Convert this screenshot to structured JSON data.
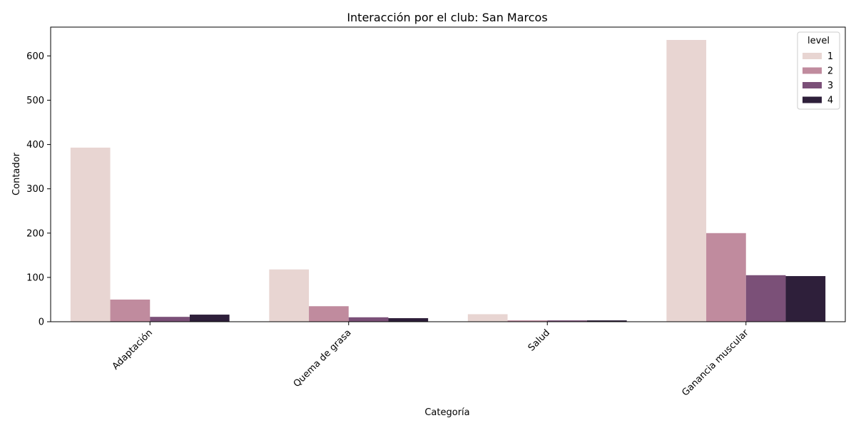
{
  "chart_data": {
    "type": "bar",
    "title": "Interacción por el club: San Marcos",
    "xlabel": "Categoría",
    "ylabel": "Contador",
    "categories": [
      "Adaptación",
      "Quema de grasa",
      "Salud",
      "Ganancia muscular"
    ],
    "legend": {
      "title": "level",
      "placement": "top-right"
    },
    "series": [
      {
        "name": "1",
        "color": "#e8d5d2",
        "values": [
          393,
          118,
          17,
          636
        ]
      },
      {
        "name": "2",
        "color": "#c08b9e",
        "values": [
          50,
          35,
          3,
          200
        ]
      },
      {
        "name": "3",
        "color": "#7b5078",
        "values": [
          11,
          10,
          3,
          105
        ]
      },
      {
        "name": "4",
        "color": "#2e1f3a",
        "values": [
          16,
          8,
          3,
          103
        ]
      }
    ],
    "ylim": [
      0,
      665
    ],
    "yticks": [
      0,
      100,
      200,
      300,
      400,
      500,
      600
    ],
    "grid": false
  }
}
